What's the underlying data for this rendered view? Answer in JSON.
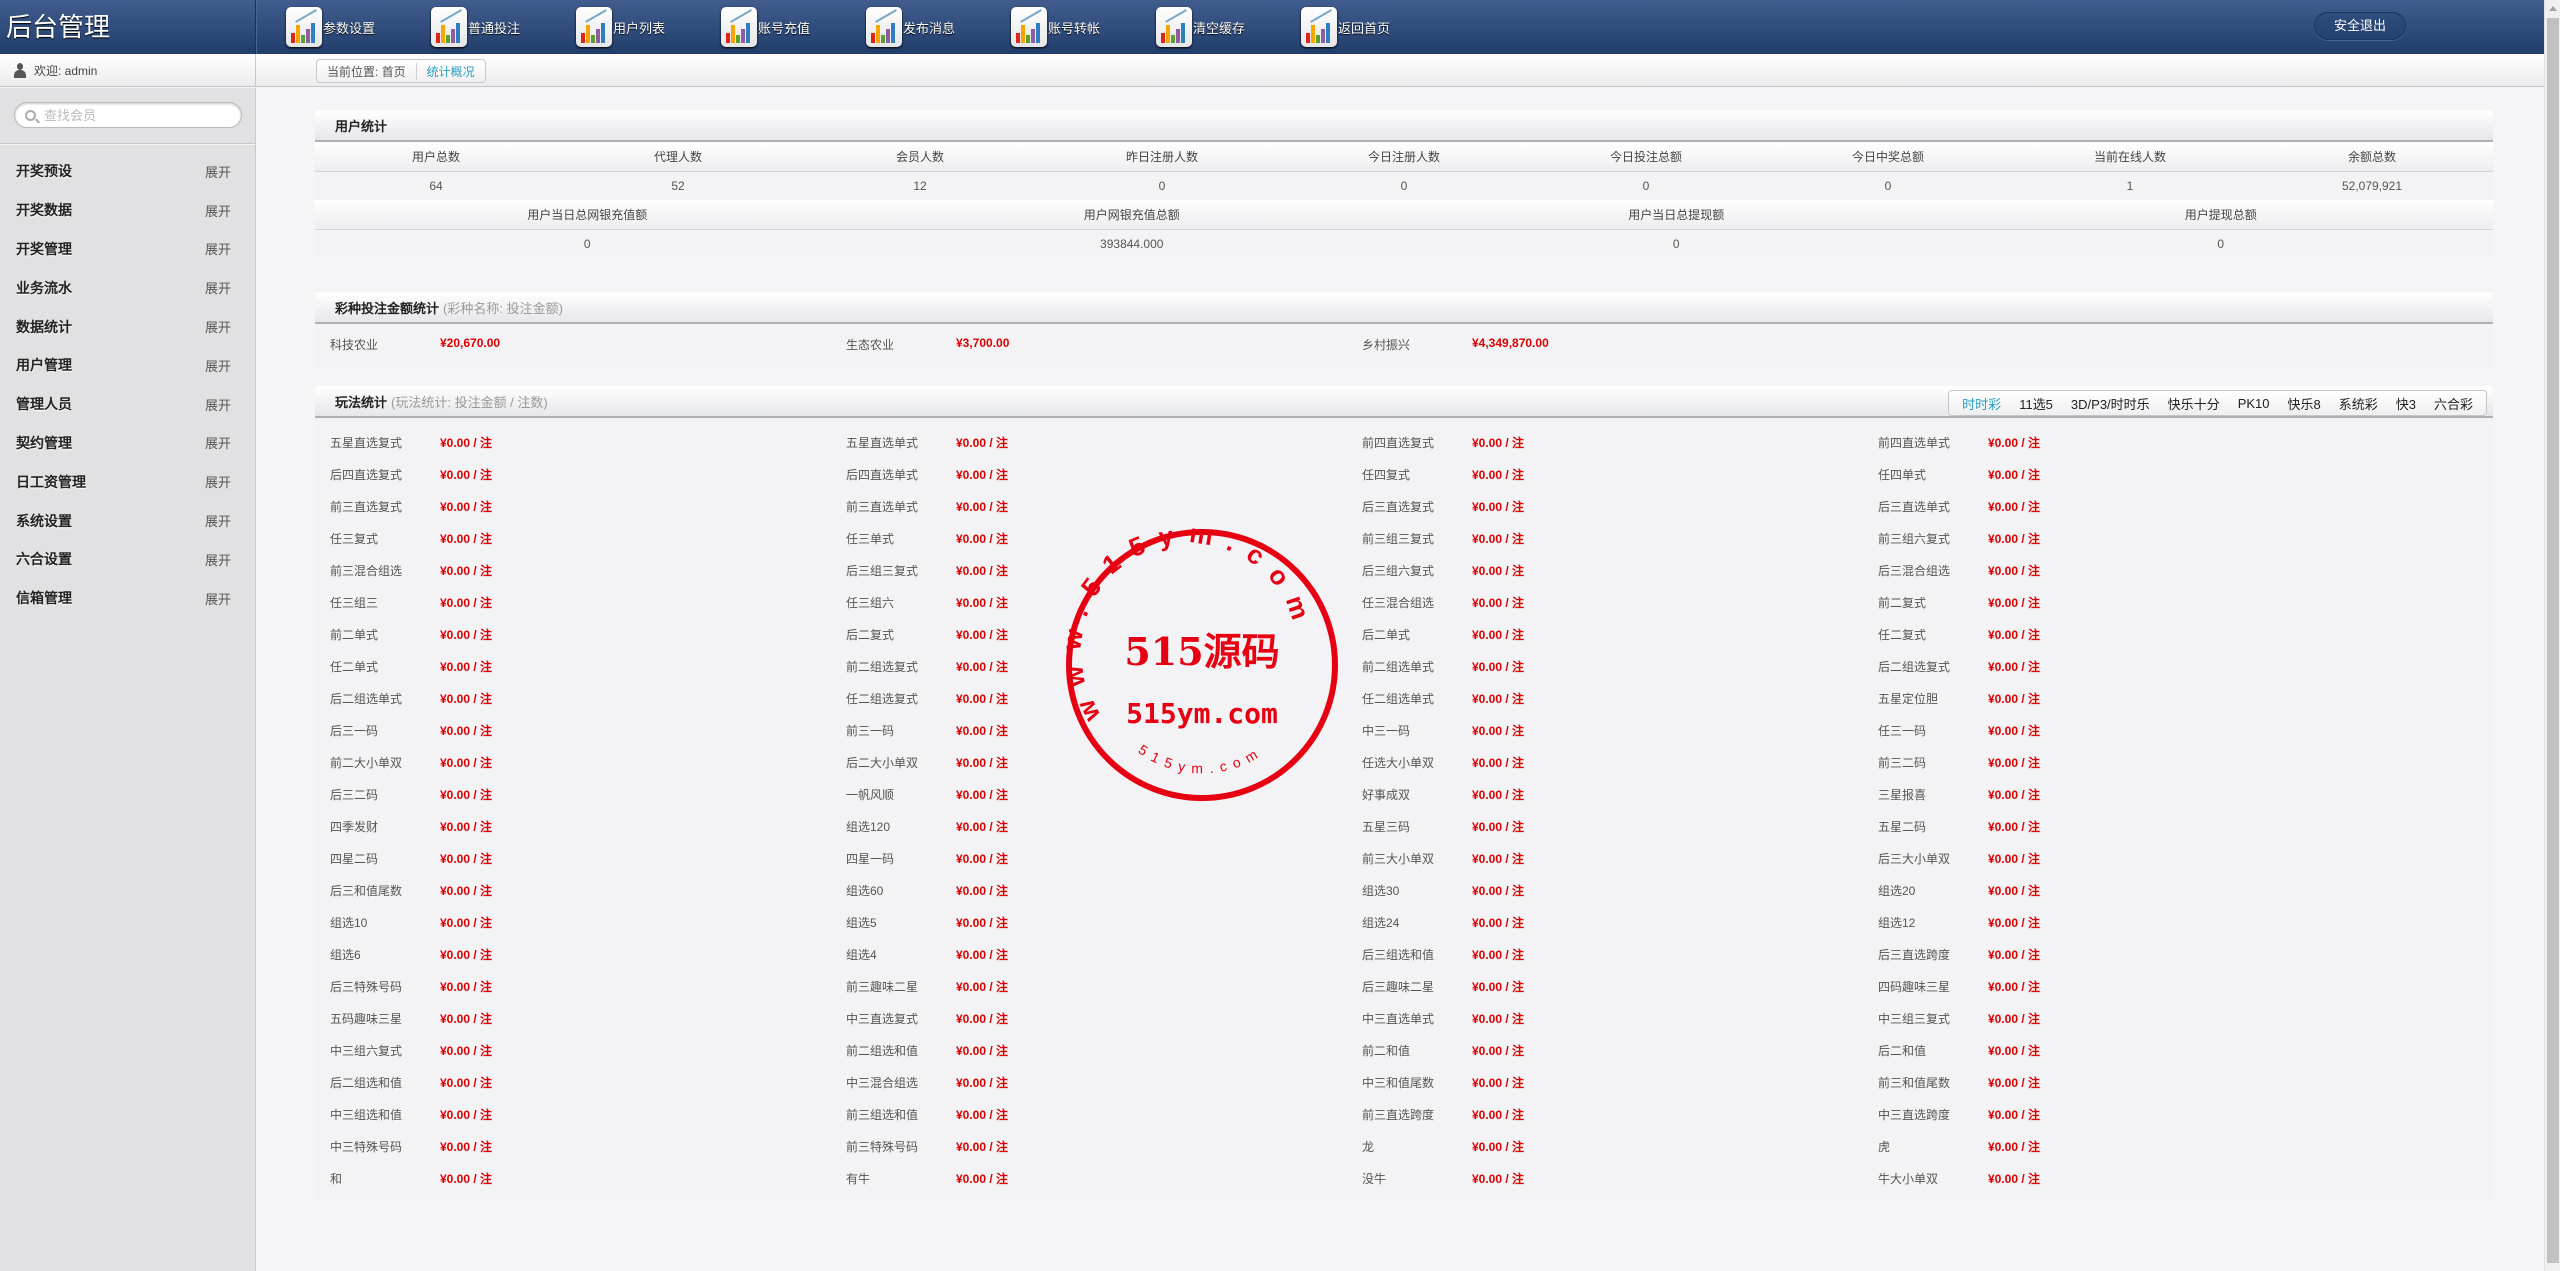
{
  "app": {
    "title": "后台管理"
  },
  "header": {
    "nav": [
      {
        "label": "参数设置",
        "icon": "chart-icon"
      },
      {
        "label": "普通投注",
        "icon": "chart-icon"
      },
      {
        "label": "用户列表",
        "icon": "chart-icon"
      },
      {
        "label": "账号充值",
        "icon": "chart-icon"
      },
      {
        "label": "发布消息",
        "icon": "chart-icon"
      },
      {
        "label": "账号转帐",
        "icon": "chart-icon"
      },
      {
        "label": "清空缓存",
        "icon": "chart-icon"
      },
      {
        "label": "返回首页",
        "icon": "chart-icon"
      }
    ],
    "logout_label": "安全退出"
  },
  "welcome": {
    "text": "欢迎: admin"
  },
  "breadcrumb": {
    "prefix": "当前位置: 首页",
    "current": "统计概况"
  },
  "sidebar": {
    "search_placeholder": "查找会员",
    "items": [
      {
        "label": "开奖预设",
        "toggle": "展开"
      },
      {
        "label": "开奖数据",
        "toggle": "展开"
      },
      {
        "label": "开奖管理",
        "toggle": "展开"
      },
      {
        "label": "业务流水",
        "toggle": "展开"
      },
      {
        "label": "数据统计",
        "toggle": "展开"
      },
      {
        "label": "用户管理",
        "toggle": "展开"
      },
      {
        "label": "管理人员",
        "toggle": "展开"
      },
      {
        "label": "契约管理",
        "toggle": "展开"
      },
      {
        "label": "日工资管理",
        "toggle": "展开"
      },
      {
        "label": "系统设置",
        "toggle": "展开"
      },
      {
        "label": "六合设置",
        "toggle": "展开"
      },
      {
        "label": "信箱管理",
        "toggle": "展开"
      }
    ]
  },
  "user_stats": {
    "title": "用户统计",
    "row1_headers": [
      "用户总数",
      "代理人数",
      "会员人数",
      "昨日注册人数",
      "今日注册人数",
      "今日投注总额",
      "今日中奖总额",
      "当前在线人数",
      "余额总数"
    ],
    "row1_values": [
      "64",
      "52",
      "12",
      "0",
      "0",
      "0",
      "0",
      "1",
      "52,079,921"
    ],
    "row2_headers": [
      "用户当日总网银充值额",
      "用户网银充值总额",
      "用户当日总提现额",
      "用户提现总额"
    ],
    "row2_values": [
      "0",
      "393844.000",
      "0",
      "0"
    ]
  },
  "lottery_stats": {
    "title": "彩种投注金额统计",
    "subtitle": "(彩种名称: 投注金额)",
    "items": [
      {
        "name": "科技农业",
        "amount": "¥20,670.00"
      },
      {
        "name": "生态农业",
        "amount": "¥3,700.00"
      },
      {
        "name": "乡村振兴",
        "amount": "¥4,349,870.00"
      }
    ]
  },
  "play_stats": {
    "title": "玩法统计",
    "subtitle": "(玩法统计: 投注金额 / 注数)",
    "tabs": [
      "时时彩",
      "11选5",
      "3D/P3/时时乐",
      "快乐十分",
      "PK10",
      "快乐8",
      "系统彩",
      "快3",
      "六合彩"
    ],
    "active_tab": "时时彩",
    "items": [
      {
        "name": "五星直选复式",
        "value": "¥0.00 / 注"
      },
      {
        "name": "五星直选单式",
        "value": "¥0.00 / 注"
      },
      {
        "name": "前四直选复式",
        "value": "¥0.00 / 注"
      },
      {
        "name": "前四直选单式",
        "value": "¥0.00 / 注"
      },
      {
        "name": "后四直选复式",
        "value": "¥0.00 / 注"
      },
      {
        "name": "后四直选单式",
        "value": "¥0.00 / 注"
      },
      {
        "name": "任四复式",
        "value": "¥0.00 / 注"
      },
      {
        "name": "任四单式",
        "value": "¥0.00 / 注"
      },
      {
        "name": "前三直选复式",
        "value": "¥0.00 / 注"
      },
      {
        "name": "前三直选单式",
        "value": "¥0.00 / 注"
      },
      {
        "name": "后三直选复式",
        "value": "¥0.00 / 注"
      },
      {
        "name": "后三直选单式",
        "value": "¥0.00 / 注"
      },
      {
        "name": "任三复式",
        "value": "¥0.00 / 注"
      },
      {
        "name": "任三单式",
        "value": "¥0.00 / 注"
      },
      {
        "name": "前三组三复式",
        "value": "¥0.00 / 注"
      },
      {
        "name": "前三组六复式",
        "value": "¥0.00 / 注"
      },
      {
        "name": "前三混合组选",
        "value": "¥0.00 / 注"
      },
      {
        "name": "后三组三复式",
        "value": "¥0.00 / 注"
      },
      {
        "name": "后三组六复式",
        "value": "¥0.00 / 注"
      },
      {
        "name": "后三混合组选",
        "value": "¥0.00 / 注"
      },
      {
        "name": "任三组三",
        "value": "¥0.00 / 注"
      },
      {
        "name": "任三组六",
        "value": "¥0.00 / 注"
      },
      {
        "name": "任三混合组选",
        "value": "¥0.00 / 注"
      },
      {
        "name": "前二复式",
        "value": "¥0.00 / 注"
      },
      {
        "name": "前二单式",
        "value": "¥0.00 / 注"
      },
      {
        "name": "后二复式",
        "value": "¥0.00 / 注"
      },
      {
        "name": "后二单式",
        "value": "¥0.00 / 注"
      },
      {
        "name": "任二复式",
        "value": "¥0.00 / 注"
      },
      {
        "name": "任二单式",
        "value": "¥0.00 / 注"
      },
      {
        "name": "前二组选复式",
        "value": "¥0.00 / 注"
      },
      {
        "name": "前二组选单式",
        "value": "¥0.00 / 注"
      },
      {
        "name": "后二组选复式",
        "value": "¥0.00 / 注"
      },
      {
        "name": "后二组选单式",
        "value": "¥0.00 / 注"
      },
      {
        "name": "任二组选复式",
        "value": "¥0.00 / 注"
      },
      {
        "name": "任二组选单式",
        "value": "¥0.00 / 注"
      },
      {
        "name": "五星定位胆",
        "value": "¥0.00 / 注"
      },
      {
        "name": "后三一码",
        "value": "¥0.00 / 注"
      },
      {
        "name": "前三一码",
        "value": "¥0.00 / 注"
      },
      {
        "name": "中三一码",
        "value": "¥0.00 / 注"
      },
      {
        "name": "任三一码",
        "value": "¥0.00 / 注"
      },
      {
        "name": "前二大小单双",
        "value": "¥0.00 / 注"
      },
      {
        "name": "后二大小单双",
        "value": "¥0.00 / 注"
      },
      {
        "name": "任选大小单双",
        "value": "¥0.00 / 注"
      },
      {
        "name": "前三二码",
        "value": "¥0.00 / 注"
      },
      {
        "name": "后三二码",
        "value": "¥0.00 / 注"
      },
      {
        "name": "一帆风顺",
        "value": "¥0.00 / 注"
      },
      {
        "name": "好事成双",
        "value": "¥0.00 / 注"
      },
      {
        "name": "三星报喜",
        "value": "¥0.00 / 注"
      },
      {
        "name": "四季发财",
        "value": "¥0.00 / 注"
      },
      {
        "name": "组选120",
        "value": "¥0.00 / 注"
      },
      {
        "name": "五星三码",
        "value": "¥0.00 / 注"
      },
      {
        "name": "五星二码",
        "value": "¥0.00 / 注"
      },
      {
        "name": "四星二码",
        "value": "¥0.00 / 注"
      },
      {
        "name": "四星一码",
        "value": "¥0.00 / 注"
      },
      {
        "name": "前三大小单双",
        "value": "¥0.00 / 注"
      },
      {
        "name": "后三大小单双",
        "value": "¥0.00 / 注"
      },
      {
        "name": "后三和值尾数",
        "value": "¥0.00 / 注"
      },
      {
        "name": "组选60",
        "value": "¥0.00 / 注"
      },
      {
        "name": "组选30",
        "value": "¥0.00 / 注"
      },
      {
        "name": "组选20",
        "value": "¥0.00 / 注"
      },
      {
        "name": "组选10",
        "value": "¥0.00 / 注"
      },
      {
        "name": "组选5",
        "value": "¥0.00 / 注"
      },
      {
        "name": "组选24",
        "value": "¥0.00 / 注"
      },
      {
        "name": "组选12",
        "value": "¥0.00 / 注"
      },
      {
        "name": "组选6",
        "value": "¥0.00 / 注"
      },
      {
        "name": "组选4",
        "value": "¥0.00 / 注"
      },
      {
        "name": "后三组选和值",
        "value": "¥0.00 / 注"
      },
      {
        "name": "后三直选跨度",
        "value": "¥0.00 / 注"
      },
      {
        "name": "后三特殊号码",
        "value": "¥0.00 / 注"
      },
      {
        "name": "前三趣味二星",
        "value": "¥0.00 / 注"
      },
      {
        "name": "后三趣味二星",
        "value": "¥0.00 / 注"
      },
      {
        "name": "四码趣味三星",
        "value": "¥0.00 / 注"
      },
      {
        "name": "五码趣味三星",
        "value": "¥0.00 / 注"
      },
      {
        "name": "中三直选复式",
        "value": "¥0.00 / 注"
      },
      {
        "name": "中三直选单式",
        "value": "¥0.00 / 注"
      },
      {
        "name": "中三组三复式",
        "value": "¥0.00 / 注"
      },
      {
        "name": "中三组六复式",
        "value": "¥0.00 / 注"
      },
      {
        "name": "前二组选和值",
        "value": "¥0.00 / 注"
      },
      {
        "name": "前二和值",
        "value": "¥0.00 / 注"
      },
      {
        "name": "后二和值",
        "value": "¥0.00 / 注"
      },
      {
        "name": "后二组选和值",
        "value": "¥0.00 / 注"
      },
      {
        "name": "中三混合组选",
        "value": "¥0.00 / 注"
      },
      {
        "name": "中三和值尾数",
        "value": "¥0.00 / 注"
      },
      {
        "name": "前三和值尾数",
        "value": "¥0.00 / 注"
      },
      {
        "name": "中三组选和值",
        "value": "¥0.00 / 注"
      },
      {
        "name": "前三组选和值",
        "value": "¥0.00 / 注"
      },
      {
        "name": "前三直选跨度",
        "value": "¥0.00 / 注"
      },
      {
        "name": "中三直选跨度",
        "value": "¥0.00 / 注"
      },
      {
        "name": "中三特殊号码",
        "value": "¥0.00 / 注"
      },
      {
        "name": "前三特殊号码",
        "value": "¥0.00 / 注"
      },
      {
        "name": "龙",
        "value": "¥0.00 / 注"
      },
      {
        "name": "虎",
        "value": "¥0.00 / 注"
      },
      {
        "name": "和",
        "value": "¥0.00 / 注"
      },
      {
        "name": "有牛",
        "value": "¥0.00 / 注"
      },
      {
        "name": "没牛",
        "value": "¥0.00 / 注"
      },
      {
        "name": "牛大小单双",
        "value": "¥0.00 / 注"
      }
    ]
  },
  "watermark": {
    "ring_text": "www.515ym.com",
    "main_text": "515源码",
    "url_text": "515ym.com",
    "bottom_text": "515ym.com",
    "color": "#e60012"
  },
  "colors": {
    "header": "#2c4a7a",
    "accent": "#2a9fc0",
    "amount": "#dd0000"
  }
}
